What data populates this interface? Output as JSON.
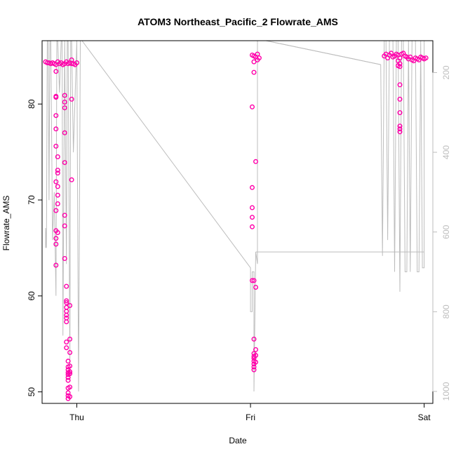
{
  "chart_data": {
    "type": "scatter",
    "title": "ATOM3 Northeast_Pacific_2 Flowrate_AMS",
    "xlabel": "Date",
    "ylabel": "Flowrate_AMS",
    "x_ticks": [
      "Thu",
      "Fri",
      "Sat"
    ],
    "x_range_days": [
      -0.2,
      2.05
    ],
    "ylim": [
      48.8,
      86.6
    ],
    "y_ticks": [
      50,
      60,
      70,
      80
    ],
    "right_axis": {
      "ticks": [
        200,
        400,
        600,
        800,
        1000
      ],
      "range": [
        120,
        1030
      ],
      "inverted": true,
      "color": "#bdbdbd"
    },
    "grid": false,
    "point_color": "#ff00aa",
    "line_color": "#bdbdbd",
    "series": [
      {
        "marker": "circle",
        "points": [
          {
            "x": -0.18,
            "y": 84.4
          },
          {
            "x": -0.17,
            "y": 84.3
          },
          {
            "x": -0.16,
            "y": 84.3
          },
          {
            "x": -0.15,
            "y": 84.2
          },
          {
            "x": -0.14,
            "y": 84.3
          },
          {
            "x": -0.13,
            "y": 84.2
          },
          {
            "x": -0.12,
            "y": 84.1
          },
          {
            "x": -0.11,
            "y": 84.4
          },
          {
            "x": -0.1,
            "y": 84.2
          },
          {
            "x": -0.09,
            "y": 84.3
          },
          {
            "x": -0.08,
            "y": 84.1
          },
          {
            "x": -0.07,
            "y": 84.2
          },
          {
            "x": -0.06,
            "y": 84.4
          },
          {
            "x": -0.05,
            "y": 84.2
          },
          {
            "x": -0.04,
            "y": 84.3
          },
          {
            "x": -0.03,
            "y": 84.2
          },
          {
            "x": -0.01,
            "y": 84.1
          },
          {
            "x": 0.0,
            "y": 84.3
          },
          {
            "x": -0.03,
            "y": 84.6
          },
          {
            "x": -0.02,
            "y": 84.2
          },
          {
            "x": -0.12,
            "y": 83.4
          },
          {
            "x": -0.12,
            "y": 80.8
          },
          {
            "x": -0.12,
            "y": 80.7
          },
          {
            "x": -0.12,
            "y": 78.8
          },
          {
            "x": -0.12,
            "y": 77.4
          },
          {
            "x": -0.12,
            "y": 75.6
          },
          {
            "x": -0.11,
            "y": 74.5
          },
          {
            "x": -0.11,
            "y": 73.1
          },
          {
            "x": -0.11,
            "y": 72.8
          },
          {
            "x": -0.12,
            "y": 71.9
          },
          {
            "x": -0.11,
            "y": 71.4
          },
          {
            "x": -0.11,
            "y": 70.5
          },
          {
            "x": -0.11,
            "y": 69.6
          },
          {
            "x": -0.12,
            "y": 68.9
          },
          {
            "x": -0.12,
            "y": 66.8
          },
          {
            "x": -0.11,
            "y": 66.6
          },
          {
            "x": -0.12,
            "y": 66.0
          },
          {
            "x": -0.12,
            "y": 65.4
          },
          {
            "x": -0.12,
            "y": 63.2
          },
          {
            "x": -0.07,
            "y": 80.9
          },
          {
            "x": -0.07,
            "y": 80.2
          },
          {
            "x": -0.07,
            "y": 79.6
          },
          {
            "x": -0.07,
            "y": 77.0
          },
          {
            "x": -0.07,
            "y": 73.9
          },
          {
            "x": -0.07,
            "y": 68.4
          },
          {
            "x": -0.07,
            "y": 67.3
          },
          {
            "x": -0.07,
            "y": 63.9
          },
          {
            "x": -0.06,
            "y": 61.0
          },
          {
            "x": -0.06,
            "y": 59.5
          },
          {
            "x": -0.06,
            "y": 59.3
          },
          {
            "x": -0.06,
            "y": 58.8
          },
          {
            "x": -0.06,
            "y": 58.4
          },
          {
            "x": -0.06,
            "y": 58.0
          },
          {
            "x": -0.06,
            "y": 57.7
          },
          {
            "x": -0.06,
            "y": 57.3
          },
          {
            "x": -0.06,
            "y": 55.2
          },
          {
            "x": -0.06,
            "y": 54.6
          },
          {
            "x": -0.05,
            "y": 53.2
          },
          {
            "x": -0.05,
            "y": 52.6
          },
          {
            "x": -0.05,
            "y": 52.3
          },
          {
            "x": -0.05,
            "y": 52.0
          },
          {
            "x": -0.05,
            "y": 51.8
          },
          {
            "x": -0.05,
            "y": 51.5
          },
          {
            "x": -0.05,
            "y": 51.2
          },
          {
            "x": -0.05,
            "y": 50.4
          },
          {
            "x": -0.05,
            "y": 49.9
          },
          {
            "x": -0.05,
            "y": 49.6
          },
          {
            "x": -0.05,
            "y": 49.3
          },
          {
            "x": -0.04,
            "y": 55.5
          },
          {
            "x": -0.04,
            "y": 54.1
          },
          {
            "x": -0.04,
            "y": 52.7
          },
          {
            "x": -0.04,
            "y": 52.1
          },
          {
            "x": -0.04,
            "y": 51.9
          },
          {
            "x": -0.04,
            "y": 50.5
          },
          {
            "x": -0.04,
            "y": 49.5
          },
          {
            "x": -0.04,
            "y": 59.0
          },
          {
            "x": -0.03,
            "y": 80.5
          },
          {
            "x": -0.03,
            "y": 72.1
          },
          {
            "x": 1.01,
            "y": 85.1
          },
          {
            "x": 1.02,
            "y": 85.0
          },
          {
            "x": 1.03,
            "y": 84.9
          },
          {
            "x": 1.04,
            "y": 85.2
          },
          {
            "x": 1.05,
            "y": 84.8
          },
          {
            "x": 1.04,
            "y": 84.6
          },
          {
            "x": 1.02,
            "y": 84.4
          },
          {
            "x": 1.02,
            "y": 83.3
          },
          {
            "x": 1.01,
            "y": 79.7
          },
          {
            "x": 1.03,
            "y": 74.0
          },
          {
            "x": 1.01,
            "y": 71.3
          },
          {
            "x": 1.01,
            "y": 69.2
          },
          {
            "x": 1.01,
            "y": 68.2
          },
          {
            "x": 1.01,
            "y": 67.2
          },
          {
            "x": 1.01,
            "y": 61.6
          },
          {
            "x": 1.02,
            "y": 61.6
          },
          {
            "x": 1.03,
            "y": 60.9
          },
          {
            "x": 1.02,
            "y": 55.5
          },
          {
            "x": 1.03,
            "y": 54.4
          },
          {
            "x": 1.02,
            "y": 54.0
          },
          {
            "x": 1.02,
            "y": 53.7
          },
          {
            "x": 1.02,
            "y": 53.5
          },
          {
            "x": 1.02,
            "y": 53.2
          },
          {
            "x": 1.02,
            "y": 52.9
          },
          {
            "x": 1.02,
            "y": 52.6
          },
          {
            "x": 1.02,
            "y": 52.3
          },
          {
            "x": 1.03,
            "y": 53.8
          },
          {
            "x": 1.03,
            "y": 53.1
          },
          {
            "x": 1.77,
            "y": 85.0
          },
          {
            "x": 1.78,
            "y": 85.2
          },
          {
            "x": 1.79,
            "y": 84.8
          },
          {
            "x": 1.8,
            "y": 85.1
          },
          {
            "x": 1.81,
            "y": 85.3
          },
          {
            "x": 1.82,
            "y": 84.9
          },
          {
            "x": 1.83,
            "y": 85.0
          },
          {
            "x": 1.84,
            "y": 85.2
          },
          {
            "x": 1.85,
            "y": 85.1
          },
          {
            "x": 1.86,
            "y": 84.8
          },
          {
            "x": 1.87,
            "y": 85.2
          },
          {
            "x": 1.88,
            "y": 85.3
          },
          {
            "x": 1.89,
            "y": 85.0
          },
          {
            "x": 1.9,
            "y": 84.9
          },
          {
            "x": 1.91,
            "y": 84.7
          },
          {
            "x": 1.92,
            "y": 84.9
          },
          {
            "x": 1.93,
            "y": 84.6
          },
          {
            "x": 1.94,
            "y": 84.5
          },
          {
            "x": 1.95,
            "y": 84.8
          },
          {
            "x": 1.96,
            "y": 84.7
          },
          {
            "x": 1.97,
            "y": 84.6
          },
          {
            "x": 1.98,
            "y": 84.9
          },
          {
            "x": 1.99,
            "y": 84.8
          },
          {
            "x": 2.0,
            "y": 84.7
          },
          {
            "x": 2.01,
            "y": 84.8
          },
          {
            "x": 1.85,
            "y": 84.5
          },
          {
            "x": 1.86,
            "y": 84.2
          },
          {
            "x": 1.85,
            "y": 84.0
          },
          {
            "x": 1.86,
            "y": 83.9
          },
          {
            "x": 1.86,
            "y": 82.0
          },
          {
            "x": 1.86,
            "y": 80.5
          },
          {
            "x": 1.86,
            "y": 79.1
          },
          {
            "x": 1.86,
            "y": 77.7
          },
          {
            "x": 1.86,
            "y": 77.4
          },
          {
            "x": 1.86,
            "y": 77.1
          }
        ]
      },
      {
        "marker": "line",
        "axis": "right",
        "points": [
          {
            "x": -0.18,
            "y": 640
          },
          {
            "x": -0.18,
            "y": 590
          },
          {
            "x": -0.175,
            "y": 640
          },
          {
            "x": -0.17,
            "y": 120
          },
          {
            "x": -0.165,
            "y": 120
          },
          {
            "x": -0.16,
            "y": 520
          },
          {
            "x": -0.155,
            "y": 120
          },
          {
            "x": -0.15,
            "y": 120
          },
          {
            "x": -0.14,
            "y": 620
          },
          {
            "x": -0.13,
            "y": 500
          },
          {
            "x": -0.12,
            "y": 760
          },
          {
            "x": -0.115,
            "y": 120
          },
          {
            "x": -0.11,
            "y": 120
          },
          {
            "x": -0.1,
            "y": 250
          },
          {
            "x": -0.09,
            "y": 120
          },
          {
            "x": -0.085,
            "y": 120
          },
          {
            "x": -0.08,
            "y": 860
          },
          {
            "x": -0.07,
            "y": 120
          },
          {
            "x": -0.06,
            "y": 680
          },
          {
            "x": -0.055,
            "y": 120
          },
          {
            "x": -0.05,
            "y": 120
          },
          {
            "x": -0.04,
            "y": 940
          },
          {
            "x": -0.035,
            "y": 120
          },
          {
            "x": -0.03,
            "y": 120
          },
          {
            "x": -0.02,
            "y": 400
          },
          {
            "x": 0.0,
            "y": 120
          },
          {
            "x": 0.01,
            "y": 1000
          },
          {
            "x": 0.02,
            "y": 120
          },
          {
            "x": 0.03,
            "y": 120
          },
          {
            "x": 1.0,
            "y": 690
          },
          {
            "x": 1.0,
            "y": 800
          },
          {
            "x": 1.01,
            "y": 800
          },
          {
            "x": 1.01,
            "y": 700
          },
          {
            "x": 1.02,
            "y": 700
          },
          {
            "x": 1.02,
            "y": 1000
          },
          {
            "x": 1.03,
            "y": 650
          },
          {
            "x": 1.03,
            "y": 650
          },
          {
            "x": 1.04,
            "y": 680
          },
          {
            "x": 1.04,
            "y": 120
          },
          {
            "x": 1.09,
            "y": 120
          },
          {
            "x": 1.75,
            "y": 180
          },
          {
            "x": 1.76,
            "y": 660
          },
          {
            "x": 1.77,
            "y": 120
          },
          {
            "x": 1.78,
            "y": 120
          },
          {
            "x": 1.79,
            "y": 620
          },
          {
            "x": 1.8,
            "y": 120
          },
          {
            "x": 1.82,
            "y": 120
          },
          {
            "x": 1.83,
            "y": 700
          },
          {
            "x": 1.84,
            "y": 120
          },
          {
            "x": 1.85,
            "y": 120
          },
          {
            "x": 1.86,
            "y": 750
          },
          {
            "x": 1.87,
            "y": 120
          },
          {
            "x": 1.88,
            "y": 120
          },
          {
            "x": 1.89,
            "y": 700
          },
          {
            "x": 1.9,
            "y": 700
          },
          {
            "x": 1.91,
            "y": 120
          },
          {
            "x": 1.92,
            "y": 700
          },
          {
            "x": 1.93,
            "y": 120
          },
          {
            "x": 1.95,
            "y": 120
          },
          {
            "x": 1.96,
            "y": 700
          },
          {
            "x": 1.97,
            "y": 700
          },
          {
            "x": 1.98,
            "y": 120
          },
          {
            "x": 1.99,
            "y": 690
          },
          {
            "x": 2.0,
            "y": 690
          },
          {
            "x": 2.0,
            "y": 120
          }
        ]
      }
    ],
    "connector_lines": [
      {
        "from": {
          "x": 0.03,
          "y": 120
        },
        "to": {
          "x": 0.03,
          "y": 120
        }
      },
      {
        "from": {
          "x": 1.03,
          "y": 650
        },
        "to": {
          "x": 2.0,
          "y": 650
        }
      },
      {
        "from": {
          "x": 1.09,
          "y": 120
        },
        "to": {
          "x": 1.75,
          "y": 180
        }
      }
    ]
  }
}
